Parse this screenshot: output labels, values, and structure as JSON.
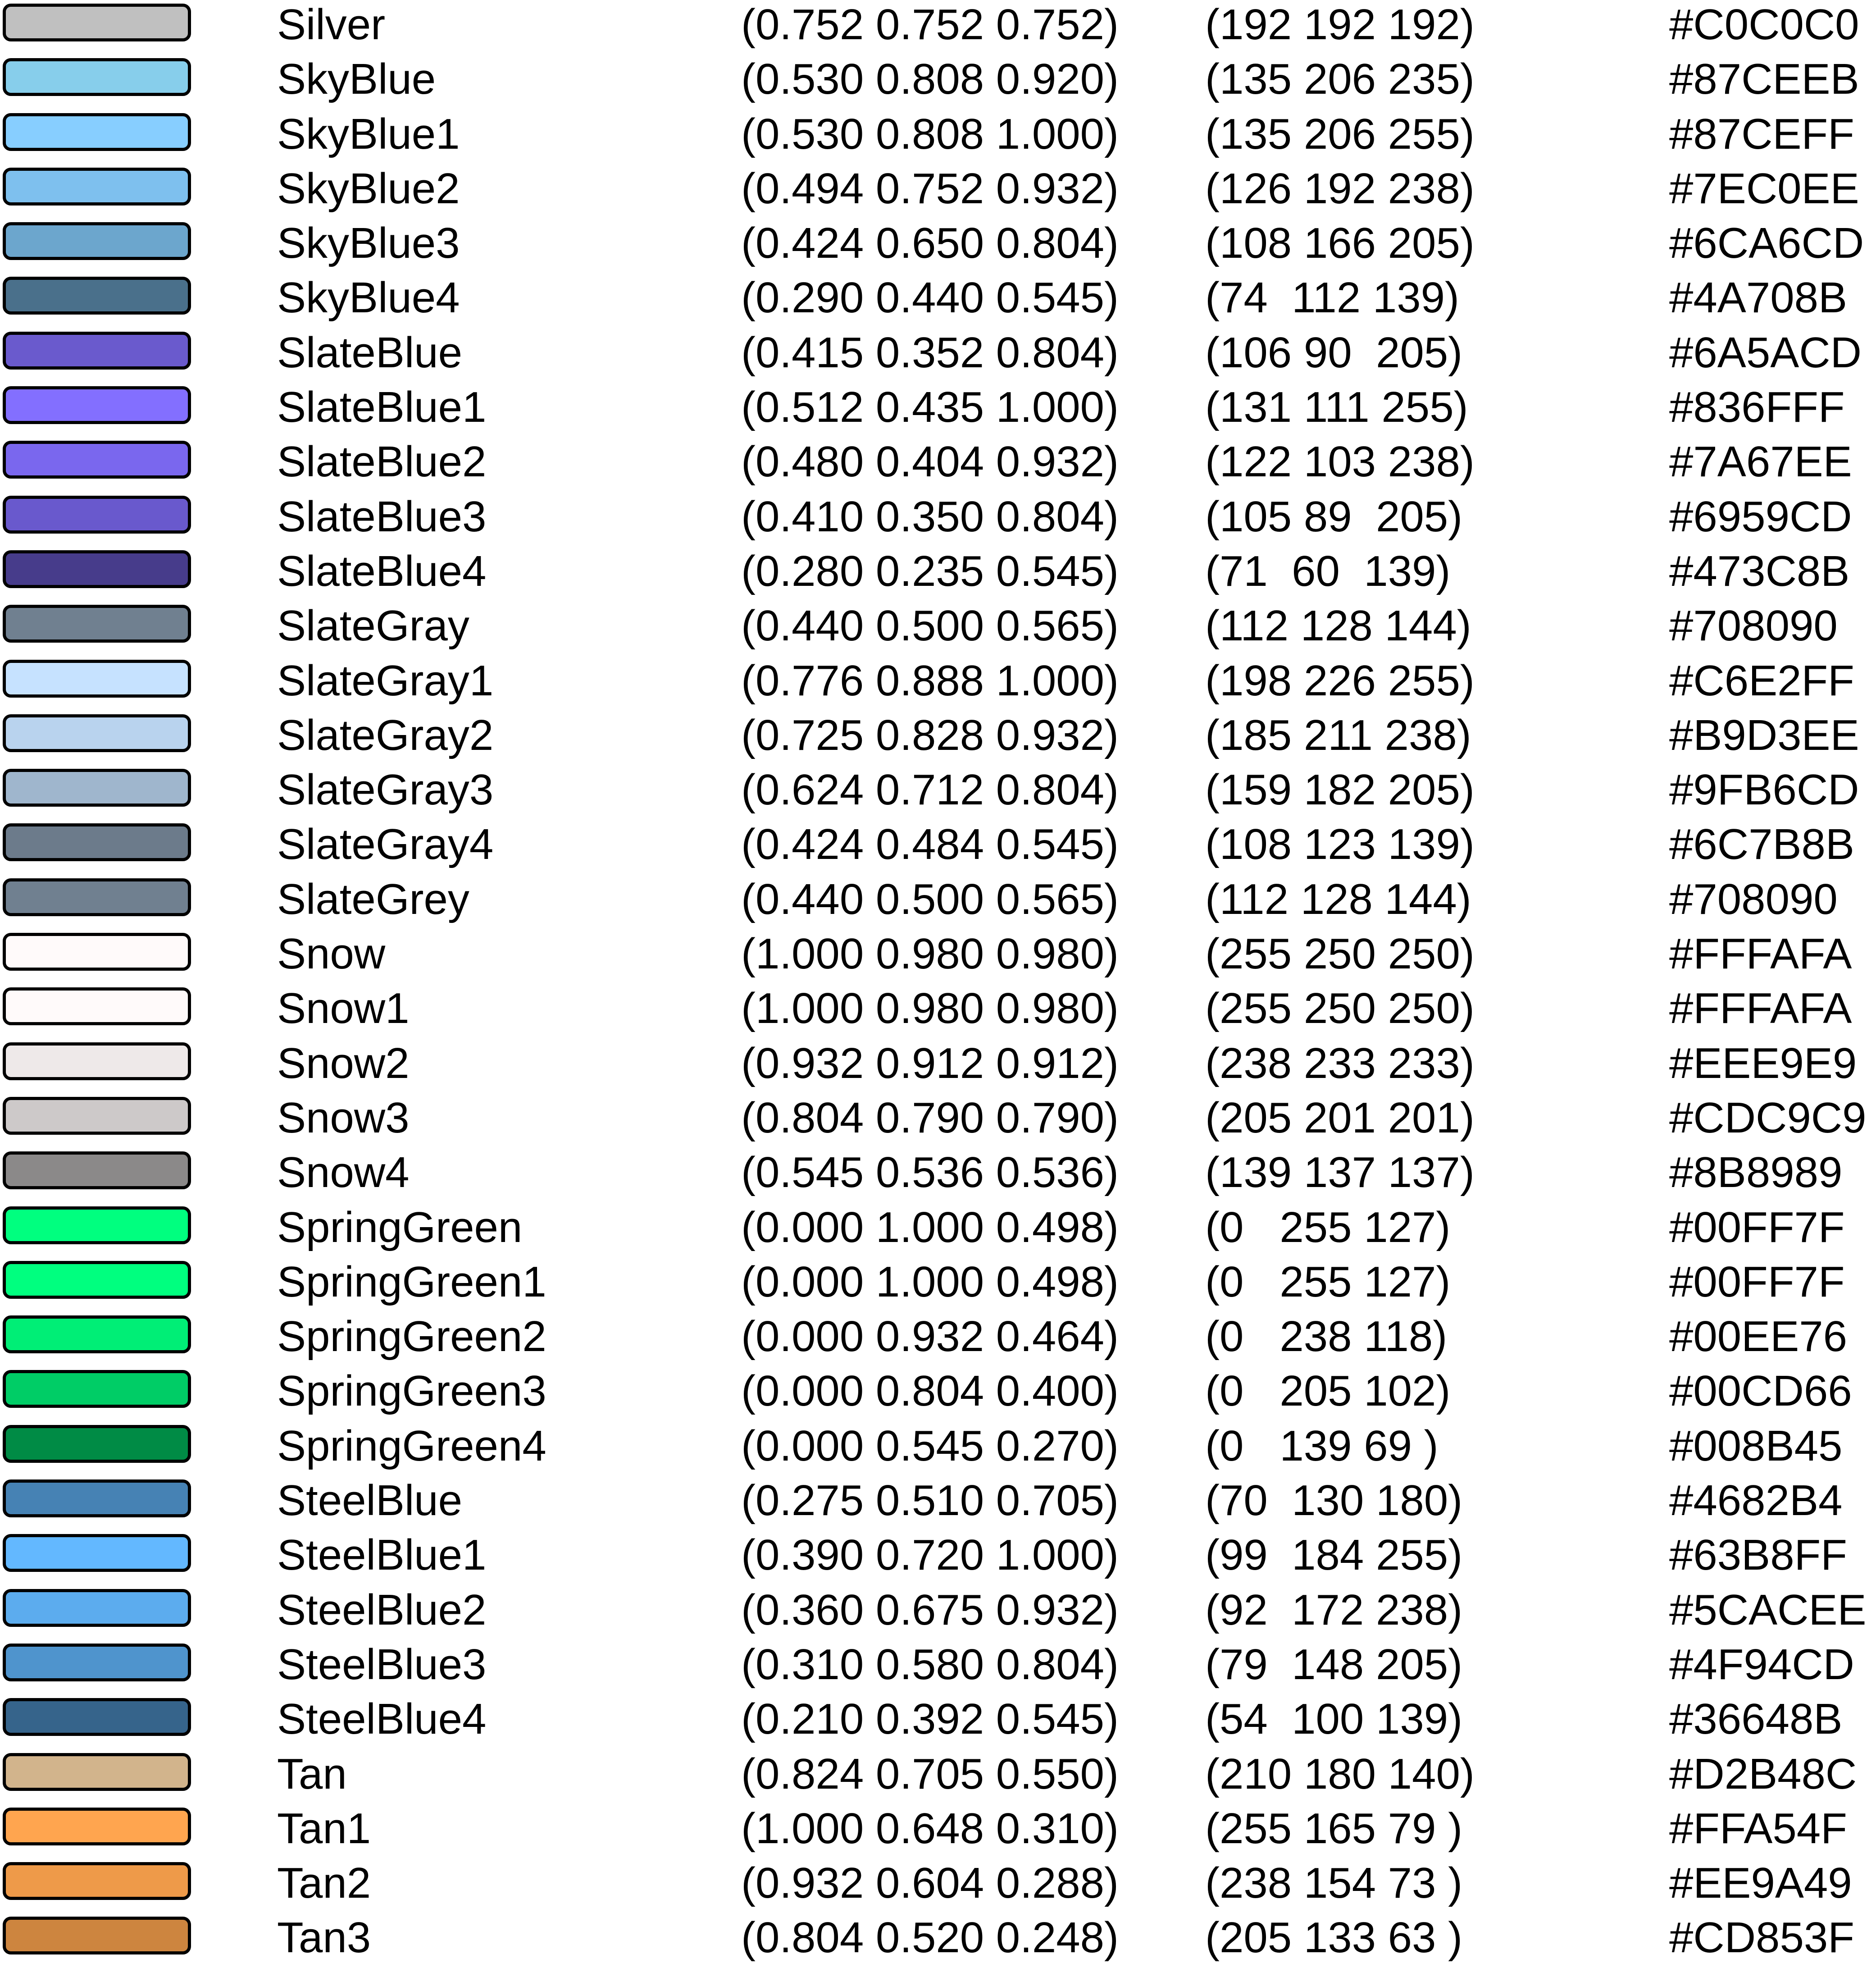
{
  "colors": [
    {
      "swatch": "#C0C0C0",
      "name": "Silver",
      "fraction": "(0.752 0.752 0.752)",
      "rgb": "(192 192 192)",
      "hex": "#C0C0C0"
    },
    {
      "swatch": "#87CEEB",
      "name": "SkyBlue",
      "fraction": "(0.530 0.808 0.920)",
      "rgb": "(135 206 235)",
      "hex": "#87CEEB"
    },
    {
      "swatch": "#87CEFF",
      "name": "SkyBlue1",
      "fraction": "(0.530 0.808 1.000)",
      "rgb": "(135 206 255)",
      "hex": "#87CEFF"
    },
    {
      "swatch": "#7EC0EE",
      "name": "SkyBlue2",
      "fraction": "(0.494 0.752 0.932)",
      "rgb": "(126 192 238)",
      "hex": "#7EC0EE"
    },
    {
      "swatch": "#6CA6CD",
      "name": "SkyBlue3",
      "fraction": "(0.424 0.650 0.804)",
      "rgb": "(108 166 205)",
      "hex": "#6CA6CD"
    },
    {
      "swatch": "#4A708B",
      "name": "SkyBlue4",
      "fraction": "(0.290 0.440 0.545)",
      "rgb": "(74  112 139)",
      "hex": "#4A708B"
    },
    {
      "swatch": "#6A5ACD",
      "name": "SlateBlue",
      "fraction": "(0.415 0.352 0.804)",
      "rgb": "(106 90  205)",
      "hex": "#6A5ACD"
    },
    {
      "swatch": "#836FFF",
      "name": "SlateBlue1",
      "fraction": "(0.512 0.435 1.000)",
      "rgb": "(131 111 255)",
      "hex": "#836FFF"
    },
    {
      "swatch": "#7A67EE",
      "name": "SlateBlue2",
      "fraction": "(0.480 0.404 0.932)",
      "rgb": "(122 103 238)",
      "hex": "#7A67EE"
    },
    {
      "swatch": "#6959CD",
      "name": "SlateBlue3",
      "fraction": "(0.410 0.350 0.804)",
      "rgb": "(105 89  205)",
      "hex": "#6959CD"
    },
    {
      "swatch": "#473C8B",
      "name": "SlateBlue4",
      "fraction": "(0.280 0.235 0.545)",
      "rgb": "(71  60  139)",
      "hex": "#473C8B"
    },
    {
      "swatch": "#708090",
      "name": "SlateGray",
      "fraction": "(0.440 0.500 0.565)",
      "rgb": "(112 128 144)",
      "hex": "#708090"
    },
    {
      "swatch": "#C6E2FF",
      "name": "SlateGray1",
      "fraction": "(0.776 0.888 1.000)",
      "rgb": "(198 226 255)",
      "hex": "#C6E2FF"
    },
    {
      "swatch": "#B9D3EE",
      "name": "SlateGray2",
      "fraction": "(0.725 0.828 0.932)",
      "rgb": "(185 211 238)",
      "hex": "#B9D3EE"
    },
    {
      "swatch": "#9FB6CD",
      "name": "SlateGray3",
      "fraction": "(0.624 0.712 0.804)",
      "rgb": "(159 182 205)",
      "hex": "#9FB6CD"
    },
    {
      "swatch": "#6C7B8B",
      "name": "SlateGray4",
      "fraction": "(0.424 0.484 0.545)",
      "rgb": "(108 123 139)",
      "hex": "#6C7B8B"
    },
    {
      "swatch": "#708090",
      "name": "SlateGrey",
      "fraction": "(0.440 0.500 0.565)",
      "rgb": "(112 128 144)",
      "hex": "#708090"
    },
    {
      "swatch": "#FFFAFA",
      "name": "Snow",
      "fraction": "(1.000 0.980 0.980)",
      "rgb": "(255 250 250)",
      "hex": "#FFFAFA"
    },
    {
      "swatch": "#FFFAFA",
      "name": "Snow1",
      "fraction": "(1.000 0.980 0.980)",
      "rgb": "(255 250 250)",
      "hex": "#FFFAFA"
    },
    {
      "swatch": "#EEE9E9",
      "name": "Snow2",
      "fraction": "(0.932 0.912 0.912)",
      "rgb": "(238 233 233)",
      "hex": "#EEE9E9"
    },
    {
      "swatch": "#CDC9C9",
      "name": "Snow3",
      "fraction": "(0.804 0.790 0.790)",
      "rgb": "(205 201 201)",
      "hex": "#CDC9C9"
    },
    {
      "swatch": "#8B8989",
      "name": "Snow4",
      "fraction": "(0.545 0.536 0.536)",
      "rgb": "(139 137 137)",
      "hex": "#8B8989"
    },
    {
      "swatch": "#00FF7F",
      "name": "SpringGreen",
      "fraction": "(0.000 1.000 0.498)",
      "rgb": "(0   255 127)",
      "hex": "#00FF7F"
    },
    {
      "swatch": "#00FF7F",
      "name": "SpringGreen1",
      "fraction": "(0.000 1.000 0.498)",
      "rgb": "(0   255 127)",
      "hex": "#00FF7F"
    },
    {
      "swatch": "#00EE76",
      "name": "SpringGreen2",
      "fraction": "(0.000 0.932 0.464)",
      "rgb": "(0   238 118)",
      "hex": "#00EE76"
    },
    {
      "swatch": "#00CD66",
      "name": "SpringGreen3",
      "fraction": "(0.000 0.804 0.400)",
      "rgb": "(0   205 102)",
      "hex": "#00CD66"
    },
    {
      "swatch": "#008B45",
      "name": "SpringGreen4",
      "fraction": "(0.000 0.545 0.270)",
      "rgb": "(0   139 69 )",
      "hex": "#008B45"
    },
    {
      "swatch": "#4682B4",
      "name": "SteelBlue",
      "fraction": "(0.275 0.510 0.705)",
      "rgb": "(70  130 180)",
      "hex": "#4682B4"
    },
    {
      "swatch": "#63B8FF",
      "name": "SteelBlue1",
      "fraction": "(0.390 0.720 1.000)",
      "rgb": "(99  184 255)",
      "hex": "#63B8FF"
    },
    {
      "swatch": "#5CACEE",
      "name": "SteelBlue2",
      "fraction": "(0.360 0.675 0.932)",
      "rgb": "(92  172 238)",
      "hex": "#5CACEE"
    },
    {
      "swatch": "#4F94CD",
      "name": "SteelBlue3",
      "fraction": "(0.310 0.580 0.804)",
      "rgb": "(79  148 205)",
      "hex": "#4F94CD"
    },
    {
      "swatch": "#36648B",
      "name": "SteelBlue4",
      "fraction": "(0.210 0.392 0.545)",
      "rgb": "(54  100 139)",
      "hex": "#36648B"
    },
    {
      "swatch": "#D2B48C",
      "name": "Tan",
      "fraction": "(0.824 0.705 0.550)",
      "rgb": "(210 180 140)",
      "hex": "#D2B48C"
    },
    {
      "swatch": "#FFA54F",
      "name": "Tan1",
      "fraction": "(1.000 0.648 0.310)",
      "rgb": "(255 165 79 )",
      "hex": "#FFA54F"
    },
    {
      "swatch": "#EE9A49",
      "name": "Tan2",
      "fraction": "(0.932 0.604 0.288)",
      "rgb": "(238 154 73 )",
      "hex": "#EE9A49"
    },
    {
      "swatch": "#CD853F",
      "name": "Tan3",
      "fraction": "(0.804 0.520 0.248)",
      "rgb": "(205 133 63 )",
      "hex": "#CD853F"
    }
  ]
}
